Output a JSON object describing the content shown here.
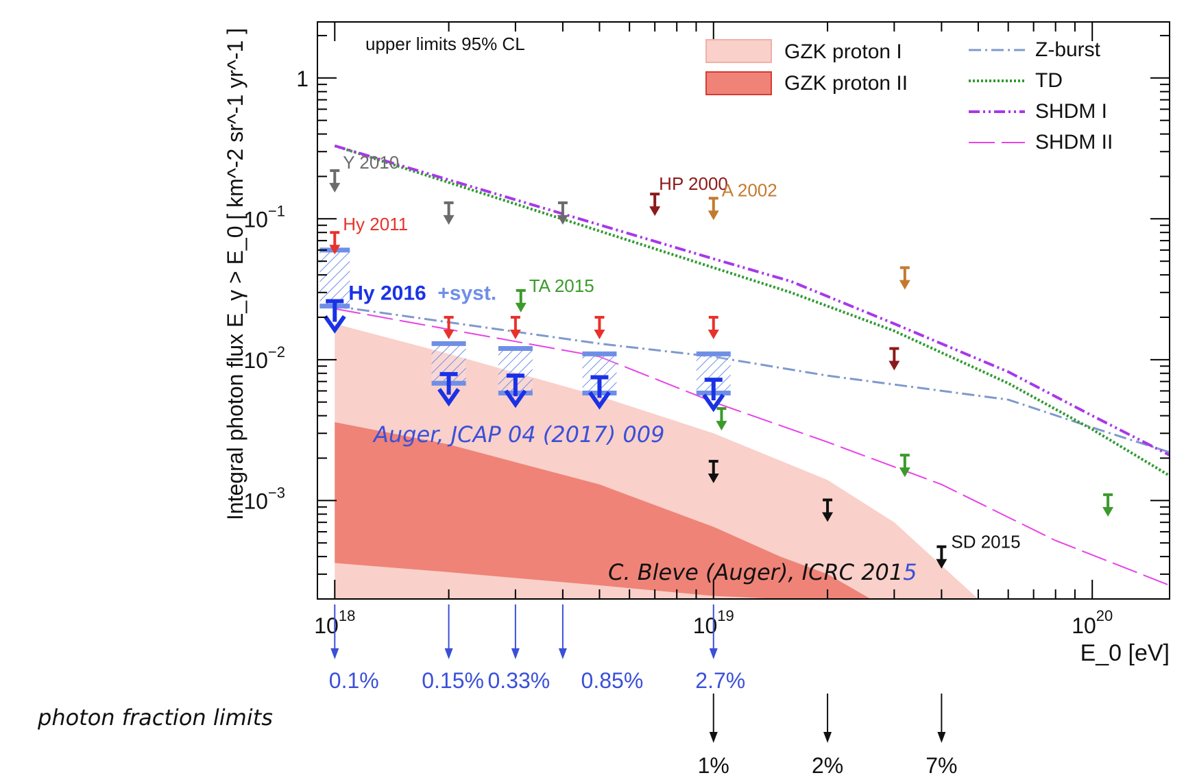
{
  "chart_data": {
    "type": "line",
    "title": "",
    "xlabel": "E_0 [eV]",
    "ylabel": "Integral photon flux E_γ > E_0 [ km^-2 sr^-1 yr^-1 ]",
    "xscale": "log",
    "yscale": "log",
    "xlim": [
      9e+17,
      1.6e+20
    ],
    "ylim": [
      0.0002,
      2.5
    ],
    "x_ticks": [
      {
        "value": 1e+18,
        "base": "10",
        "exp": "18"
      },
      {
        "value": 1e+19,
        "base": "10",
        "exp": "19"
      },
      {
        "value": 1e+20,
        "base": "10",
        "exp": "20"
      }
    ],
    "y_ticks": [
      {
        "value": 1,
        "base": "1",
        "exp": ""
      },
      {
        "value": 0.1,
        "base": "10",
        "exp": "−1"
      },
      {
        "value": 0.01,
        "base": "10",
        "exp": "−2"
      },
      {
        "value": 0.001,
        "base": "10",
        "exp": "−3"
      }
    ],
    "annotation_cl": "upper limits 95% CL",
    "legend": [
      {
        "label": "GZK proton I",
        "kind": "band",
        "color": "#f9d0ca"
      },
      {
        "label": "GZK proton II",
        "kind": "band",
        "color": "#ef8377"
      },
      {
        "label": "Z-burst",
        "kind": "line",
        "color": "#7f99cc",
        "dash": "dashdot"
      },
      {
        "label": "TD",
        "kind": "line",
        "color": "#2e9a2e",
        "dash": "dotted"
      },
      {
        "label": "SHDM I",
        "kind": "line",
        "color": "#a838e8",
        "dash": "dashdotdot"
      },
      {
        "label": "SHDM II",
        "kind": "line",
        "color": "#e842e8",
        "dash": "longdash"
      }
    ],
    "bands": [
      {
        "name": "GZK proton I",
        "color": "#f9d0ca",
        "x": [
          1e+18,
          2e+18,
          5e+18,
          1e+19,
          2e+19,
          3e+19,
          5e+19
        ],
        "upper": [
          0.018,
          0.011,
          0.0055,
          0.003,
          0.0014,
          0.0007,
          0.0002
        ],
        "lower": [
          0.0002,
          0.0002,
          0.0002,
          0.0002,
          0.0002,
          0.0002,
          0.0002
        ]
      },
      {
        "name": "GZK proton II",
        "color": "#ef8377",
        "x": [
          1e+18,
          2e+18,
          5e+18,
          1e+19,
          1.5e+19,
          2e+19,
          2.6e+19
        ],
        "upper": [
          0.0036,
          0.0025,
          0.0013,
          0.00065,
          0.0004,
          0.0003,
          0.0002
        ],
        "lower": [
          0.00036,
          0.00031,
          0.00025,
          0.00021,
          0.0002,
          0.0002,
          0.0002
        ]
      }
    ],
    "series": [
      {
        "name": "Z-burst",
        "color": "#7f99cc",
        "dash": "dashdot",
        "x": [
          1e+18,
          5e+18,
          1e+19,
          2e+19,
          6e+19,
          1e+20,
          1.6e+20
        ],
        "values": [
          0.024,
          0.013,
          0.0105,
          0.0077,
          0.0052,
          0.0033,
          0.0022
        ]
      },
      {
        "name": "TD",
        "color": "#2e9a2e",
        "dash": "dotted",
        "x": [
          1e+18,
          1e+19,
          1.6e+19,
          3e+19,
          6e+19,
          1e+20,
          1.6e+20
        ],
        "values": [
          0.33,
          0.045,
          0.03,
          0.016,
          0.0068,
          0.0032,
          0.0015
        ]
      },
      {
        "name": "SHDM I",
        "color": "#a838e8",
        "dash": "dashdotdot",
        "x": [
          1e+18,
          1e+19,
          1.6e+19,
          3e+19,
          6e+19,
          1e+20,
          1.6e+20
        ],
        "values": [
          0.33,
          0.052,
          0.036,
          0.018,
          0.0082,
          0.004,
          0.0021
        ]
      },
      {
        "name": "SHDM II",
        "color": "#e842e8",
        "dash": "longdash",
        "x": [
          1e+18,
          5e+18,
          1e+19,
          2e+19,
          4e+19,
          8e+19,
          1.6e+20
        ],
        "values": [
          0.023,
          0.0105,
          0.005,
          0.0026,
          0.0013,
          0.00052,
          0.00025
        ]
      }
    ],
    "experiment_limits": [
      {
        "label": "Y 2010",
        "color": "#6b6b6b",
        "x": [
          1e+18,
          2e+18,
          4e+18
        ],
        "values": [
          0.22,
          0.13,
          0.13
        ],
        "label_index": 0
      },
      {
        "label": "HP 2000",
        "color": "#8b1a1a",
        "x": [
          7e+18,
          3e+19
        ],
        "values": [
          0.15,
          0.012
        ],
        "label_index": 0
      },
      {
        "label": "A 2002",
        "color": "#c47a2e",
        "x": [
          1e+19,
          3.2e+19
        ],
        "values": [
          0.14,
          0.045
        ],
        "label_index": 0
      },
      {
        "label": "Hy 2011",
        "color": "#e8312a",
        "x": [
          1e+18,
          2e+18,
          3e+18,
          5e+18,
          1e+19
        ],
        "values": [
          0.08,
          0.02,
          0.02,
          0.02,
          0.02
        ],
        "label_index": 0
      },
      {
        "label": "TA 2015",
        "color": "#3a9a2a",
        "x": [
          3.1e+18,
          1.05e+19,
          3.2e+19,
          1.1e+20
        ],
        "values": [
          0.031,
          0.0045,
          0.0021,
          0.0011
        ],
        "label_index": 0
      },
      {
        "label": "SD 2015",
        "color": "#111111",
        "x": [
          1e+19,
          2e+19,
          4e+19
        ],
        "values": [
          0.0019,
          0.00101,
          0.00047
        ],
        "label_index": 2
      }
    ],
    "hy2016": {
      "label": "Hy 2016",
      "syst_label": "+syst.",
      "color": "#1a32e6",
      "syst_color": "#6f8fe6",
      "x": [
        1e+18,
        2e+18,
        3e+18,
        5e+18,
        1e+19
      ],
      "values": [
        0.026,
        0.0079,
        0.0077,
        0.0075,
        0.0072
      ],
      "syst_high": [
        0.06,
        0.013,
        0.012,
        0.011,
        0.011
      ],
      "syst_low": [
        0.024,
        0.0068,
        0.0058,
        0.0058,
        0.0058
      ]
    },
    "annotations": [
      {
        "text": "Auger, JCAP 04 (2017) 009",
        "color": "#3a50d8"
      },
      {
        "text": "C. Bleve (Auger), ICRC 201",
        "suffix": "5",
        "color": "#111111",
        "suffix_color": "#3a50d8"
      }
    ],
    "photon_fraction": {
      "heading": "photon fraction limits",
      "hybrid": [
        {
          "x": 1e+18,
          "label": "0.1%"
        },
        {
          "x": 2e+18,
          "label": "0.15%"
        },
        {
          "x": 3e+18,
          "label": "0.33%"
        },
        {
          "x": 4e+18,
          "label": "0.85%"
        },
        {
          "x": 1e+19,
          "label": "2.7%"
        }
      ],
      "sd": [
        {
          "x": 1e+19,
          "label": "1%"
        },
        {
          "x": 2e+19,
          "label": "2%"
        },
        {
          "x": 4e+19,
          "label": "7%"
        }
      ]
    }
  }
}
